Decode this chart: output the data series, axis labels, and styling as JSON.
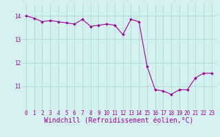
{
  "x": [
    0,
    1,
    2,
    3,
    4,
    5,
    6,
    7,
    8,
    9,
    10,
    11,
    12,
    13,
    14,
    15,
    16,
    17,
    18,
    19,
    20,
    21,
    22,
    23
  ],
  "y": [
    14.0,
    13.9,
    13.75,
    13.8,
    13.75,
    13.7,
    13.65,
    13.85,
    13.55,
    13.6,
    13.65,
    13.6,
    13.2,
    13.85,
    13.75,
    11.85,
    10.85,
    10.8,
    10.65,
    10.85,
    10.85,
    11.35,
    11.55,
    11.55
  ],
  "line_color": "#990099",
  "marker": "D",
  "marker_size": 2,
  "bg_color": "#d4f0f0",
  "grid_color": "#b0d8d8",
  "xlabel": "Windchill (Refroidissement éolien,°C)",
  "xlabel_color": "#990099",
  "xlabel_fontsize": 7,
  "tick_color": "#990099",
  "tick_fontsize": 5.5,
  "ylim": [
    10.0,
    14.5
  ],
  "xlim": [
    -0.5,
    23.5
  ],
  "yticks": [
    11,
    12,
    13,
    14
  ],
  "xticks": [
    0,
    1,
    2,
    3,
    4,
    5,
    6,
    7,
    8,
    9,
    10,
    11,
    12,
    13,
    14,
    15,
    16,
    17,
    18,
    19,
    20,
    21,
    22,
    23
  ]
}
